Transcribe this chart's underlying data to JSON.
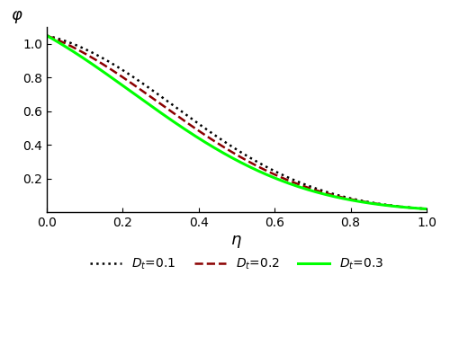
{
  "title": "",
  "xlabel": "η",
  "ylabel": "φ",
  "xlim": [
    0.0,
    1.0
  ],
  "ylim": [
    0.0,
    1.1
  ],
  "yticks": [
    0.2,
    0.4,
    0.6,
    0.8,
    1.0
  ],
  "xticks": [
    0.0,
    0.2,
    0.4,
    0.6,
    0.8,
    1.0
  ],
  "legend": [
    {
      "label": "$D_t$=0.1",
      "color": "#000000",
      "linestyle": "dotted",
      "linewidth": 1.8
    },
    {
      "label": "$D_t$=0.2",
      "color": "#8B0000",
      "linestyle": "dashed",
      "linewidth": 1.8
    },
    {
      "label": "$D_t$=0.3",
      "color": "#00FF00",
      "linestyle": "solid",
      "linewidth": 2.2
    }
  ],
  "background_color": "#ffffff",
  "Dt_values": [
    0.1,
    0.2,
    0.3
  ],
  "n_points": 300
}
